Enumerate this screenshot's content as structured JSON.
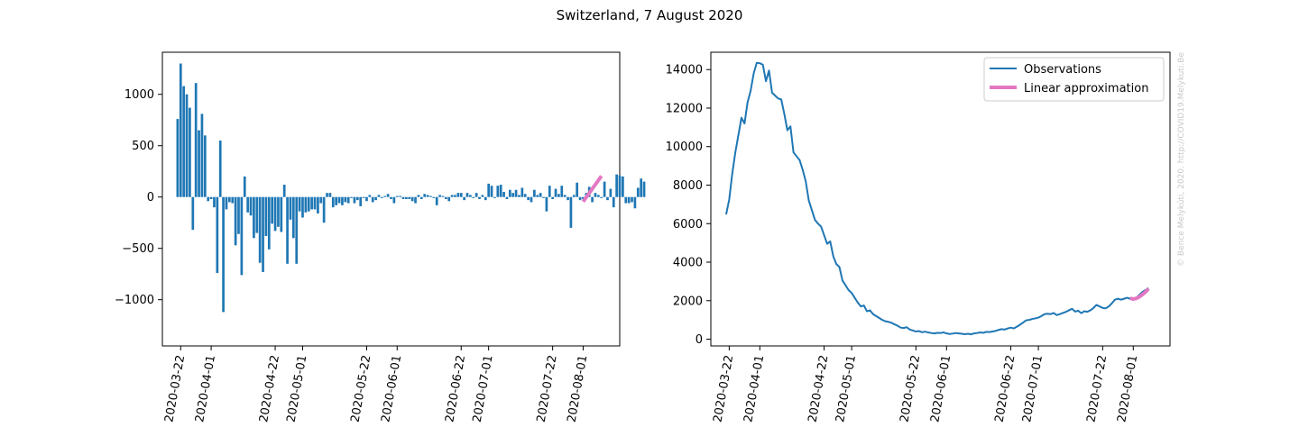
{
  "title": "Switzerland, 7 August 2020",
  "watermark": "© Bence Melykúti, 2020. http://COVID19.Melykuti.Be",
  "colors": {
    "observations": "#1f77b4",
    "linear": "#e377c2"
  },
  "chart_data": [
    {
      "type": "bar",
      "name": "daily-change",
      "x_start": "2020-03-21",
      "x_ticks": [
        "2020-03-22",
        "2020-04-01",
        "2020-04-22",
        "2020-05-01",
        "2020-05-22",
        "2020-06-01",
        "2020-06-22",
        "2020-07-01",
        "2020-07-22",
        "2020-08-01"
      ],
      "xlim": [
        "2020-03-16",
        "2020-08-13"
      ],
      "ylim": [
        -1450,
        1410
      ],
      "y_ticks": [
        -1000,
        -500,
        0,
        500,
        1000
      ],
      "grid": false,
      "values": [
        760,
        1300,
        1080,
        1000,
        870,
        -320,
        1110,
        650,
        810,
        600,
        -40,
        -20,
        -100,
        -740,
        550,
        -1120,
        -120,
        -50,
        -60,
        -470,
        -360,
        -760,
        200,
        -150,
        -180,
        -400,
        -350,
        -640,
        -730,
        -380,
        -510,
        -260,
        -330,
        -290,
        -340,
        120,
        -650,
        -220,
        -400,
        -650,
        -140,
        -200,
        -150,
        -140,
        -120,
        -120,
        -160,
        -60,
        -250,
        40,
        40,
        -100,
        -80,
        -60,
        -80,
        -50,
        -60,
        -10,
        -60,
        -30,
        -90,
        -10,
        -40,
        20,
        -50,
        -30,
        20,
        -10,
        10,
        30,
        -20,
        -60,
        10,
        10,
        -20,
        -20,
        -20,
        -40,
        -60,
        20,
        -20,
        30,
        20,
        10,
        -10,
        -80,
        20,
        10,
        -20,
        -40,
        20,
        20,
        40,
        40,
        -30,
        40,
        20,
        -10,
        40,
        -20,
        20,
        -30,
        130,
        110,
        -10,
        110,
        120,
        50,
        -20,
        70,
        40,
        70,
        20,
        90,
        30,
        -30,
        -50,
        70,
        20,
        40,
        -10,
        -140,
        110,
        -20,
        80,
        30,
        110,
        20,
        -30,
        -300,
        20,
        140,
        -30,
        -20,
        40,
        100,
        -50,
        40,
        20,
        -10,
        150,
        -30,
        80,
        -100,
        220,
        210,
        200,
        -60,
        -60,
        -50,
        -110,
        90,
        180,
        150
      ],
      "linear_approx": {
        "x": [
          "2020-08-01",
          "2020-08-07"
        ],
        "y": [
          -45,
          205
        ]
      }
    },
    {
      "type": "line",
      "name": "active-cases",
      "xlim": [
        "2020-03-16",
        "2020-08-13"
      ],
      "ylim": [
        -350,
        14900
      ],
      "y_ticks": [
        0,
        2000,
        4000,
        6000,
        8000,
        10000,
        12000,
        14000
      ],
      "x_ticks": [
        "2020-03-22",
        "2020-04-01",
        "2020-04-22",
        "2020-05-01",
        "2020-05-22",
        "2020-06-01",
        "2020-06-22",
        "2020-07-01",
        "2020-07-22",
        "2020-08-01"
      ],
      "grid": false,
      "legend_position": "top-right",
      "legend": [
        "Observations",
        "Linear approximation"
      ],
      "series": [
        {
          "name": "Observations",
          "points": [
            [
              "2020-03-21",
              6480
            ],
            [
              "2020-03-22",
              7250
            ],
            [
              "2020-03-23",
              8600
            ],
            [
              "2020-03-24",
              9700
            ],
            [
              "2020-03-25",
              10600
            ],
            [
              "2020-03-26",
              11500
            ],
            [
              "2020-03-27",
              11200
            ],
            [
              "2020-03-28",
              12300
            ],
            [
              "2020-03-29",
              12900
            ],
            [
              "2020-03-30",
              13800
            ],
            [
              "2020-03-31",
              14350
            ],
            [
              "2020-04-01",
              14330
            ],
            [
              "2020-04-02",
              14250
            ],
            [
              "2020-04-03",
              13400
            ],
            [
              "2020-04-04",
              13950
            ],
            [
              "2020-04-05",
              12800
            ],
            [
              "2020-04-06",
              12650
            ],
            [
              "2020-04-07",
              12500
            ],
            [
              "2020-04-08",
              12450
            ],
            [
              "2020-04-09",
              11700
            ],
            [
              "2020-04-10",
              10850
            ],
            [
              "2020-04-11",
              11050
            ],
            [
              "2020-04-12",
              9700
            ],
            [
              "2020-04-13",
              9500
            ],
            [
              "2020-04-14",
              9300
            ],
            [
              "2020-04-15",
              8800
            ],
            [
              "2020-04-16",
              8200
            ],
            [
              "2020-04-17",
              7200
            ],
            [
              "2020-04-18",
              6700
            ],
            [
              "2020-04-19",
              6200
            ],
            [
              "2020-04-20",
              6000
            ],
            [
              "2020-04-21",
              5850
            ],
            [
              "2020-04-22",
              5400
            ],
            [
              "2020-04-23",
              4950
            ],
            [
              "2020-04-24",
              5080
            ],
            [
              "2020-04-25",
              4300
            ],
            [
              "2020-04-26",
              3900
            ],
            [
              "2020-04-27",
              3750
            ],
            [
              "2020-04-28",
              3050
            ],
            [
              "2020-04-29",
              2800
            ],
            [
              "2020-04-30",
              2550
            ],
            [
              "2020-05-01",
              2400
            ],
            [
              "2020-05-02",
              2150
            ],
            [
              "2020-05-03",
              1900
            ],
            [
              "2020-05-04",
              1700
            ],
            [
              "2020-05-05",
              1750
            ],
            [
              "2020-05-06",
              1450
            ],
            [
              "2020-05-07",
              1500
            ],
            [
              "2020-05-08",
              1300
            ],
            [
              "2020-05-09",
              1200
            ],
            [
              "2020-05-10",
              1100
            ],
            [
              "2020-05-11",
              1000
            ],
            [
              "2020-05-12",
              930
            ],
            [
              "2020-05-13",
              900
            ],
            [
              "2020-05-14",
              850
            ],
            [
              "2020-05-15",
              770
            ],
            [
              "2020-05-16",
              700
            ],
            [
              "2020-05-17",
              600
            ],
            [
              "2020-05-18",
              580
            ],
            [
              "2020-05-19",
              620
            ],
            [
              "2020-05-20",
              500
            ],
            [
              "2020-05-21",
              450
            ],
            [
              "2020-05-22",
              400
            ],
            [
              "2020-05-23",
              420
            ],
            [
              "2020-05-24",
              360
            ],
            [
              "2020-05-25",
              390
            ],
            [
              "2020-05-26",
              350
            ],
            [
              "2020-05-27",
              320
            ],
            [
              "2020-05-28",
              300
            ],
            [
              "2020-05-29",
              330
            ],
            [
              "2020-05-30",
              320
            ],
            [
              "2020-05-31",
              350
            ],
            [
              "2020-06-01",
              300
            ],
            [
              "2020-06-02",
              270
            ],
            [
              "2020-06-03",
              290
            ],
            [
              "2020-06-04",
              320
            ],
            [
              "2020-06-05",
              300
            ],
            [
              "2020-06-06",
              280
            ],
            [
              "2020-06-07",
              260
            ],
            [
              "2020-06-08",
              280
            ],
            [
              "2020-06-09",
              250
            ],
            [
              "2020-06-10",
              300
            ],
            [
              "2020-06-11",
              320
            ],
            [
              "2020-06-12",
              350
            ],
            [
              "2020-06-13",
              330
            ],
            [
              "2020-06-14",
              380
            ],
            [
              "2020-06-15",
              370
            ],
            [
              "2020-06-16",
              400
            ],
            [
              "2020-06-17",
              430
            ],
            [
              "2020-06-18",
              480
            ],
            [
              "2020-06-19",
              520
            ],
            [
              "2020-06-20",
              500
            ],
            [
              "2020-06-21",
              560
            ],
            [
              "2020-06-22",
              600
            ],
            [
              "2020-06-23",
              560
            ],
            [
              "2020-06-24",
              650
            ],
            [
              "2020-06-25",
              750
            ],
            [
              "2020-06-26",
              860
            ],
            [
              "2020-06-27",
              980
            ],
            [
              "2020-06-28",
              1000
            ],
            [
              "2020-06-29",
              1050
            ],
            [
              "2020-06-30",
              1080
            ],
            [
              "2020-07-01",
              1120
            ],
            [
              "2020-07-02",
              1200
            ],
            [
              "2020-07-03",
              1300
            ],
            [
              "2020-07-04",
              1320
            ],
            [
              "2020-07-05",
              1300
            ],
            [
              "2020-07-06",
              1360
            ],
            [
              "2020-07-07",
              1250
            ],
            [
              "2020-07-08",
              1300
            ],
            [
              "2020-07-09",
              1360
            ],
            [
              "2020-07-10",
              1420
            ],
            [
              "2020-07-11",
              1500
            ],
            [
              "2020-07-12",
              1580
            ],
            [
              "2020-07-13",
              1430
            ],
            [
              "2020-07-14",
              1480
            ],
            [
              "2020-07-15",
              1350
            ],
            [
              "2020-07-16",
              1450
            ],
            [
              "2020-07-17",
              1420
            ],
            [
              "2020-07-18",
              1500
            ],
            [
              "2020-07-19",
              1620
            ],
            [
              "2020-07-20",
              1780
            ],
            [
              "2020-07-21",
              1700
            ],
            [
              "2020-07-22",
              1620
            ],
            [
              "2020-07-23",
              1600
            ],
            [
              "2020-07-24",
              1700
            ],
            [
              "2020-07-25",
              1860
            ],
            [
              "2020-07-26",
              2050
            ],
            [
              "2020-07-27",
              2100
            ],
            [
              "2020-07-28",
              2050
            ],
            [
              "2020-07-29",
              2100
            ],
            [
              "2020-07-30",
              2150
            ],
            [
              "2020-07-31",
              2100
            ],
            [
              "2020-08-01",
              2050
            ],
            [
              "2020-08-02",
              2150
            ],
            [
              "2020-08-03",
              2300
            ],
            [
              "2020-08-04",
              2450
            ],
            [
              "2020-08-05",
              2550
            ],
            [
              "2020-08-06",
              2650
            ]
          ]
        },
        {
          "name": "Linear approximation",
          "points": [
            [
              "2020-07-31",
              2130
            ],
            [
              "2020-08-01",
              2080
            ],
            [
              "2020-08-02",
              2120
            ],
            [
              "2020-08-03",
              2200
            ],
            [
              "2020-08-04",
              2320
            ],
            [
              "2020-08-05",
              2450
            ],
            [
              "2020-08-06",
              2620
            ]
          ]
        }
      ]
    }
  ]
}
